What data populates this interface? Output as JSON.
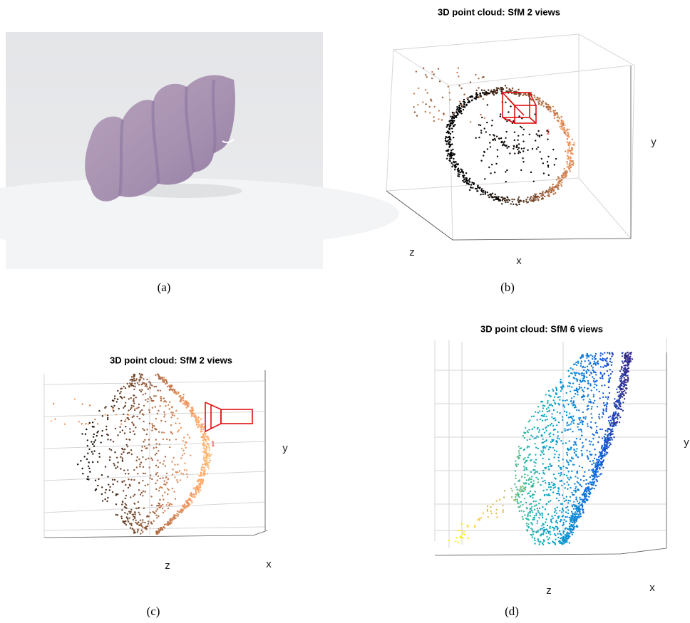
{
  "figure": {
    "panels": [
      {
        "caption": "(a)"
      },
      {
        "title": "3D point cloud: SfM 2 views",
        "axis_labels": {
          "x": "x",
          "y": "y",
          "z": "z"
        },
        "camera_label": "1",
        "caption": "(b)"
      },
      {
        "title": "3D point cloud: SfM 2 views",
        "axis_labels": {
          "x": "x",
          "y": "y",
          "z": "z"
        },
        "camera_label": "1",
        "caption": "(c)"
      },
      {
        "title": "3D point cloud: SfM 6 views",
        "axis_labels": {
          "x": "x",
          "y": "y",
          "z": "z"
        },
        "caption": "(d)"
      }
    ]
  }
}
